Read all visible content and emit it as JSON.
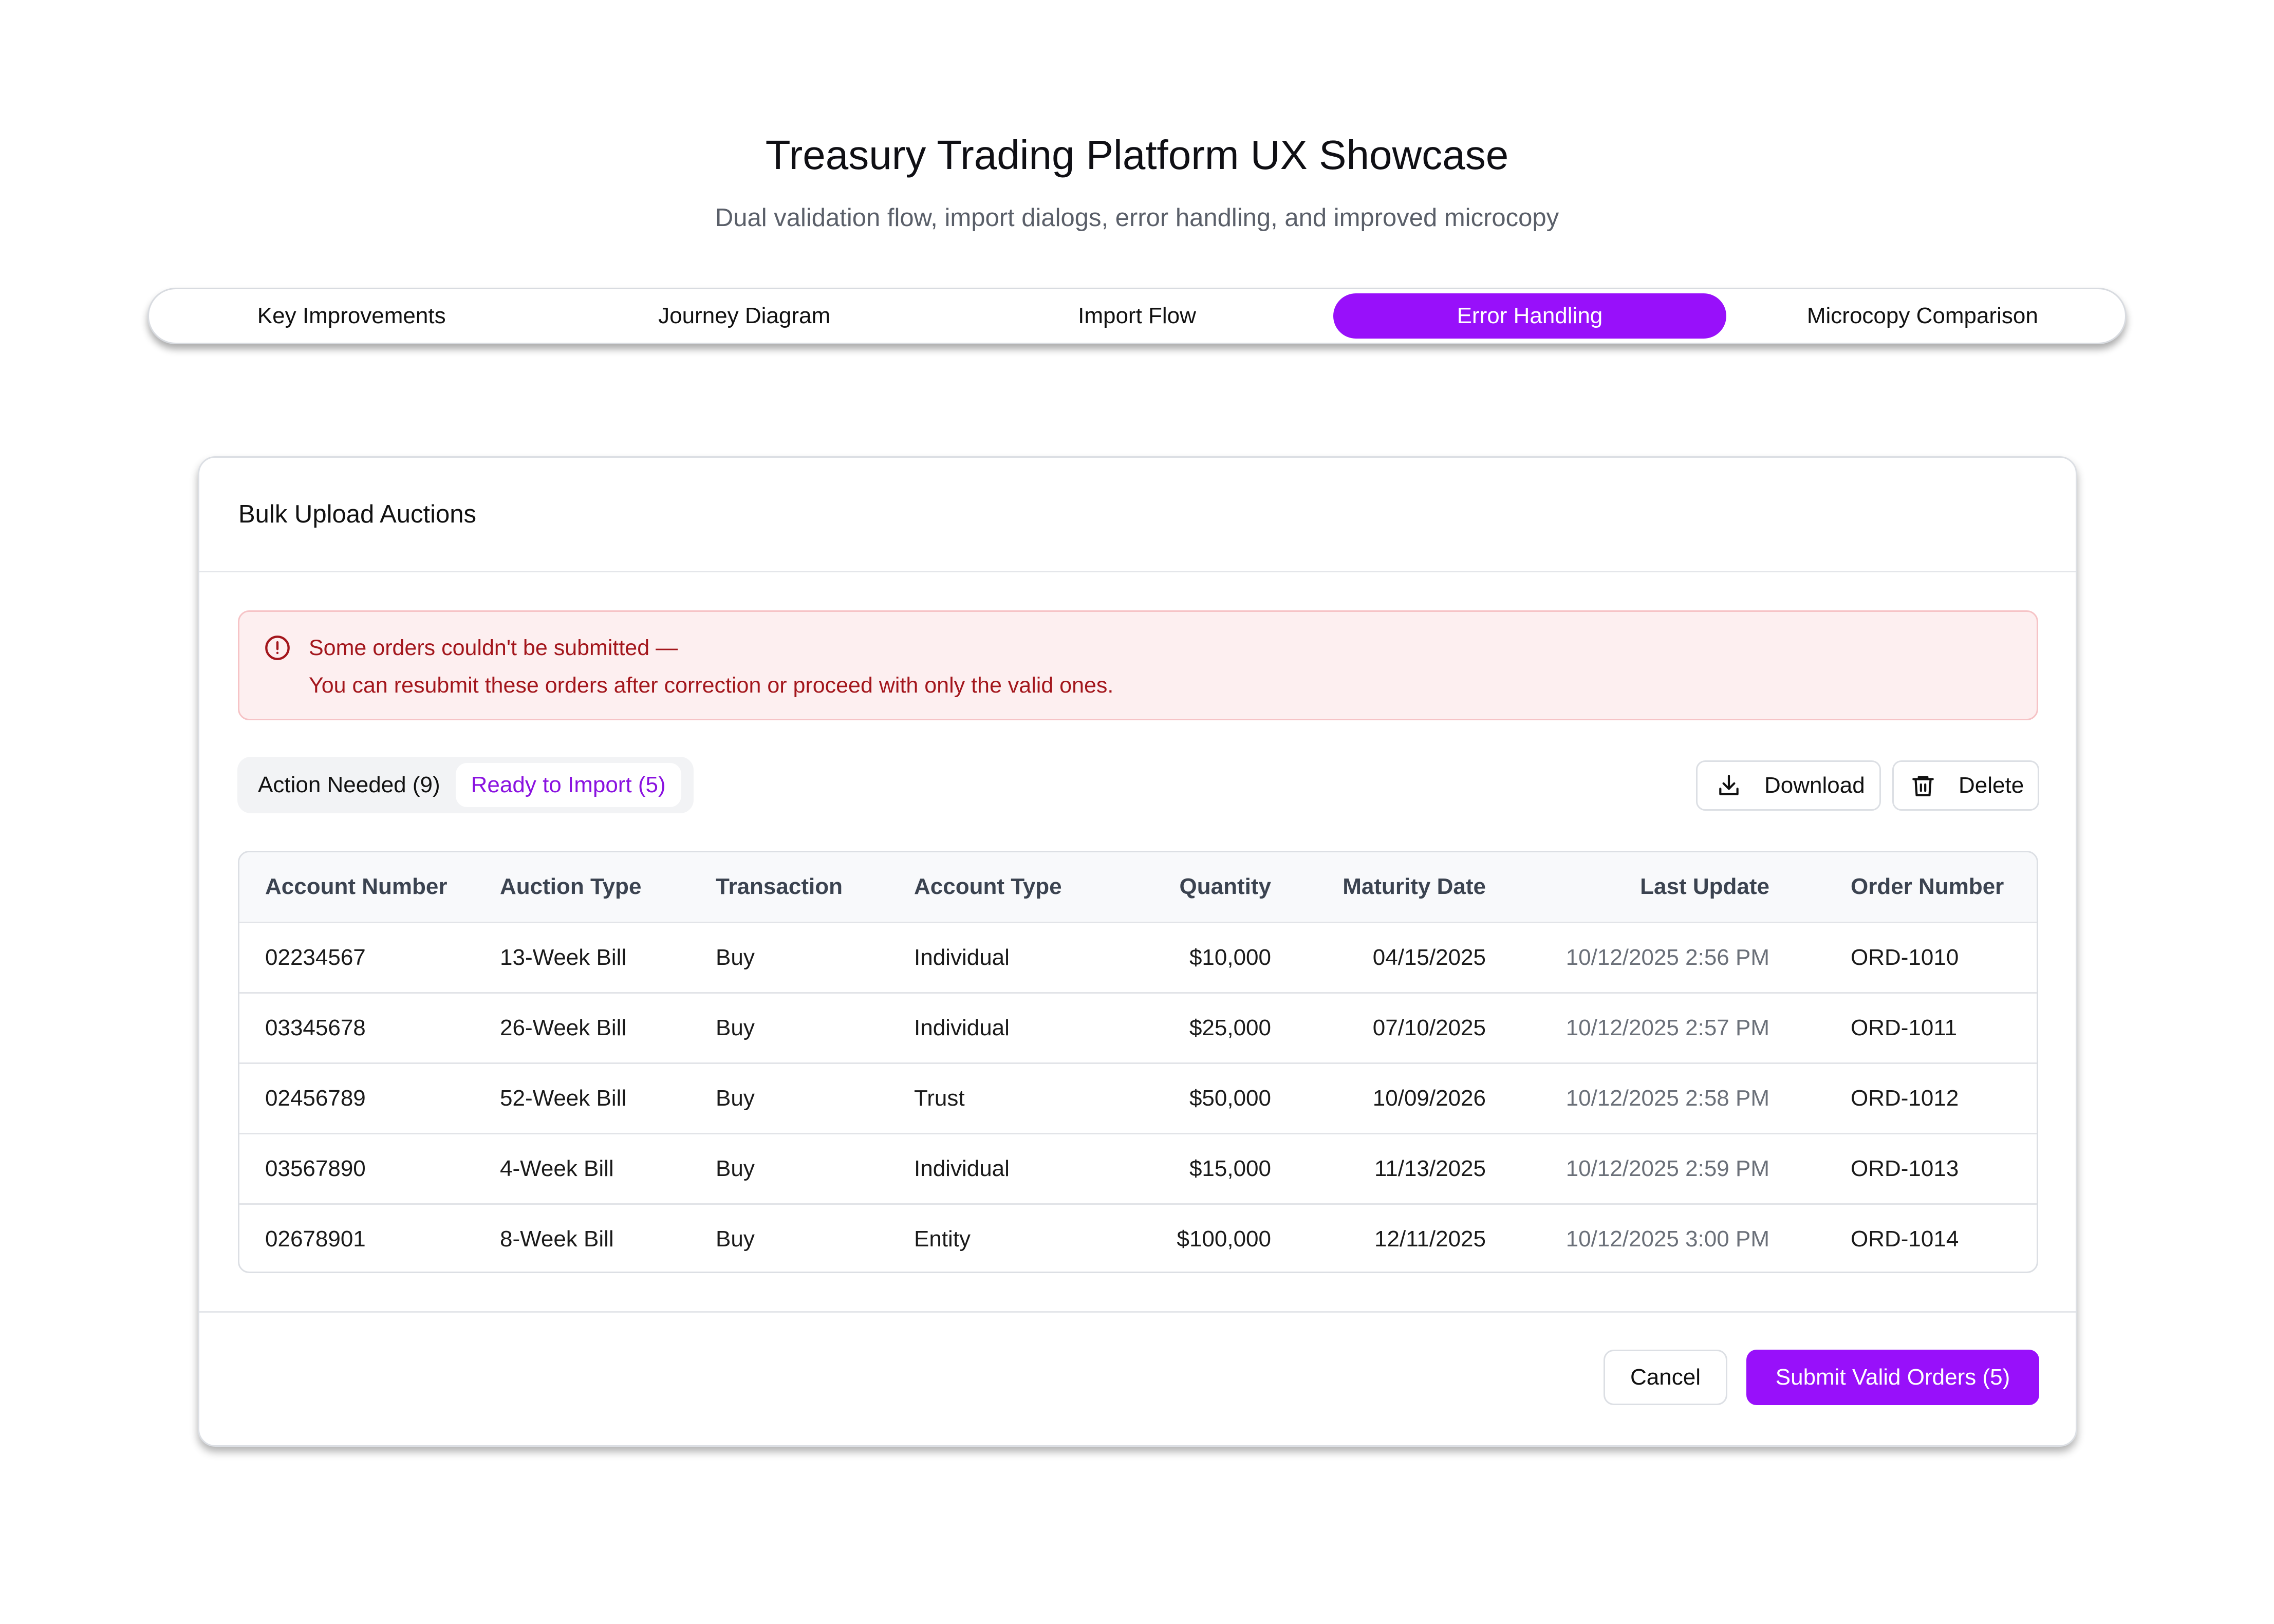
{
  "header": {
    "title": "Treasury Trading Platform UX Showcase",
    "subtitle": "Dual validation flow, import dialogs, error handling, and improved microcopy"
  },
  "tabs": [
    {
      "label": "Key Improvements",
      "active": false
    },
    {
      "label": "Journey Diagram",
      "active": false
    },
    {
      "label": "Import Flow",
      "active": false
    },
    {
      "label": "Error Handling",
      "active": true
    },
    {
      "label": "Microcopy Comparison",
      "active": false
    }
  ],
  "dialog": {
    "title": "Bulk Upload Auctions",
    "alert": {
      "icon": "alert-circle-icon",
      "line1": "Some orders couldn't be submitted —",
      "line2": "You can resubmit these orders after correction or proceed with only the valid ones."
    },
    "filters": {
      "action_needed": "Action Needed (9)",
      "ready_to_import": "Ready to Import (5)",
      "selected": "ready_to_import"
    },
    "toolbar": {
      "download_label": "Download",
      "download_icon": "download-icon",
      "delete_label": "Delete",
      "delete_icon": "trash-icon"
    },
    "table": {
      "columns": [
        "Account Number",
        "Auction Type",
        "Transaction",
        "Account Type",
        "Quantity",
        "Maturity Date",
        "Last Update",
        "Order Number"
      ],
      "rows": [
        [
          "02234567",
          "13-Week Bill",
          "Buy",
          "Individual",
          "$10,000",
          "04/15/2025",
          "10/12/2025 2:56 PM",
          "ORD-1010"
        ],
        [
          "03345678",
          "26-Week Bill",
          "Buy",
          "Individual",
          "$25,000",
          "07/10/2025",
          "10/12/2025 2:57 PM",
          "ORD-1011"
        ],
        [
          "02456789",
          "52-Week Bill",
          "Buy",
          "Trust",
          "$50,000",
          "10/09/2026",
          "10/12/2025 2:58 PM",
          "ORD-1012"
        ],
        [
          "03567890",
          "4-Week Bill",
          "Buy",
          "Individual",
          "$15,000",
          "11/13/2025",
          "10/12/2025 2:59 PM",
          "ORD-1013"
        ],
        [
          "02678901",
          "8-Week Bill",
          "Buy",
          "Entity",
          "$100,000",
          "12/11/2025",
          "10/12/2025 3:00 PM",
          "ORD-1014"
        ]
      ]
    },
    "footer": {
      "cancel_label": "Cancel",
      "submit_label": "Submit Valid Orders (5)"
    }
  },
  "colors": {
    "accent": "#9810fa",
    "error_text": "#a3161c",
    "error_bg": "#fdeff0",
    "error_border": "#f6c3c6"
  }
}
